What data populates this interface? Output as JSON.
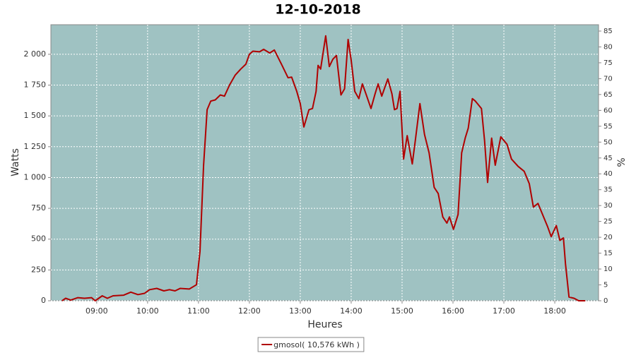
{
  "chart_data": {
    "type": "line",
    "title": "12-10-2018",
    "x_label": "Heures",
    "y_label": "Watts",
    "y2_label": "%",
    "xlim": [
      8.1,
      18.86
    ],
    "xticks": [
      {
        "value": 9,
        "label": "09:00"
      },
      {
        "value": 10,
        "label": "10:00"
      },
      {
        "value": 11,
        "label": "11:00"
      },
      {
        "value": 12,
        "label": "12:00"
      },
      {
        "value": 13,
        "label": "13:00"
      },
      {
        "value": 14,
        "label": "14:00"
      },
      {
        "value": 15,
        "label": "15:00"
      },
      {
        "value": 16,
        "label": "16:00"
      },
      {
        "value": 17,
        "label": "17:00"
      },
      {
        "value": 18,
        "label": "18:00"
      }
    ],
    "ylim": [
      0,
      2240
    ],
    "yticks": [
      0,
      250,
      500,
      750,
      {
        "value": 1000,
        "label": "1 000"
      },
      {
        "value": 1250,
        "label": "1 250"
      },
      {
        "value": 1500,
        "label": "1 500"
      },
      {
        "value": 1750,
        "label": "1 750"
      },
      {
        "value": 2000,
        "label": "2 000"
      }
    ],
    "y2lim": [
      0,
      87
    ],
    "y2ticks": [
      0,
      5,
      10,
      15,
      20,
      25,
      30,
      35,
      40,
      45,
      50,
      55,
      60,
      65,
      70,
      75,
      80,
      85
    ],
    "grid": true,
    "background": "#9fc2c2",
    "legend": "bottom",
    "x": [
      8.32,
      8.39,
      8.49,
      8.63,
      8.76,
      8.9,
      8.97,
      9.11,
      9.21,
      9.32,
      9.53,
      9.67,
      9.81,
      9.94,
      10.04,
      10.18,
      10.32,
      10.43,
      10.54,
      10.64,
      10.82,
      10.96,
      11.03,
      11.1,
      11.17,
      11.24,
      11.33,
      11.43,
      11.51,
      11.61,
      11.72,
      11.83,
      11.93,
      12.0,
      12.07,
      12.2,
      12.28,
      12.4,
      12.49,
      12.63,
      12.76,
      12.83,
      12.93,
      13.0,
      13.07,
      13.17,
      13.24,
      13.31,
      13.35,
      13.4,
      13.5,
      13.57,
      13.64,
      13.71,
      13.8,
      13.87,
      13.94,
      14.0,
      14.07,
      14.15,
      14.22,
      14.29,
      14.39,
      14.47,
      14.53,
      14.6,
      14.72,
      14.8,
      14.85,
      14.9,
      14.96,
      15.03,
      15.1,
      15.2,
      15.26,
      15.35,
      15.44,
      15.53,
      15.63,
      15.71,
      15.8,
      15.88,
      15.93,
      16.01,
      16.1,
      16.17,
      16.24,
      16.3,
      16.38,
      16.44,
      16.56,
      16.62,
      16.68,
      16.76,
      16.83,
      16.94,
      17.06,
      17.15,
      17.28,
      17.4,
      17.5,
      17.58,
      17.67,
      17.78,
      17.86,
      17.93,
      18.03,
      18.1,
      18.17,
      18.21,
      18.28,
      18.38,
      18.47,
      18.6
    ],
    "series": [
      {
        "name": "gmosol( 10,576 kWh )",
        "color": "#b00000",
        "values": [
          0,
          20,
          5,
          25,
          20,
          25,
          0,
          40,
          20,
          40,
          45,
          70,
          50,
          60,
          90,
          100,
          80,
          90,
          80,
          100,
          95,
          130,
          400,
          1100,
          1550,
          1620,
          1630,
          1670,
          1660,
          1750,
          1830,
          1880,
          1920,
          2000,
          2025,
          2020,
          2040,
          2010,
          2035,
          1920,
          1810,
          1815,
          1700,
          1600,
          1410,
          1550,
          1560,
          1700,
          1910,
          1880,
          2150,
          1900,
          1960,
          1990,
          1670,
          1720,
          2120,
          1950,
          1700,
          1640,
          1760,
          1680,
          1560,
          1680,
          1760,
          1660,
          1800,
          1680,
          1550,
          1560,
          1700,
          1150,
          1340,
          1110,
          1300,
          1600,
          1350,
          1200,
          920,
          870,
          680,
          630,
          680,
          580,
          700,
          1200,
          1320,
          1400,
          1640,
          1620,
          1560,
          1300,
          960,
          1320,
          1100,
          1330,
          1270,
          1150,
          1090,
          1050,
          950,
          760,
          790,
          680,
          600,
          520,
          610,
          490,
          510,
          300,
          30,
          20,
          0,
          0
        ]
      }
    ]
  }
}
